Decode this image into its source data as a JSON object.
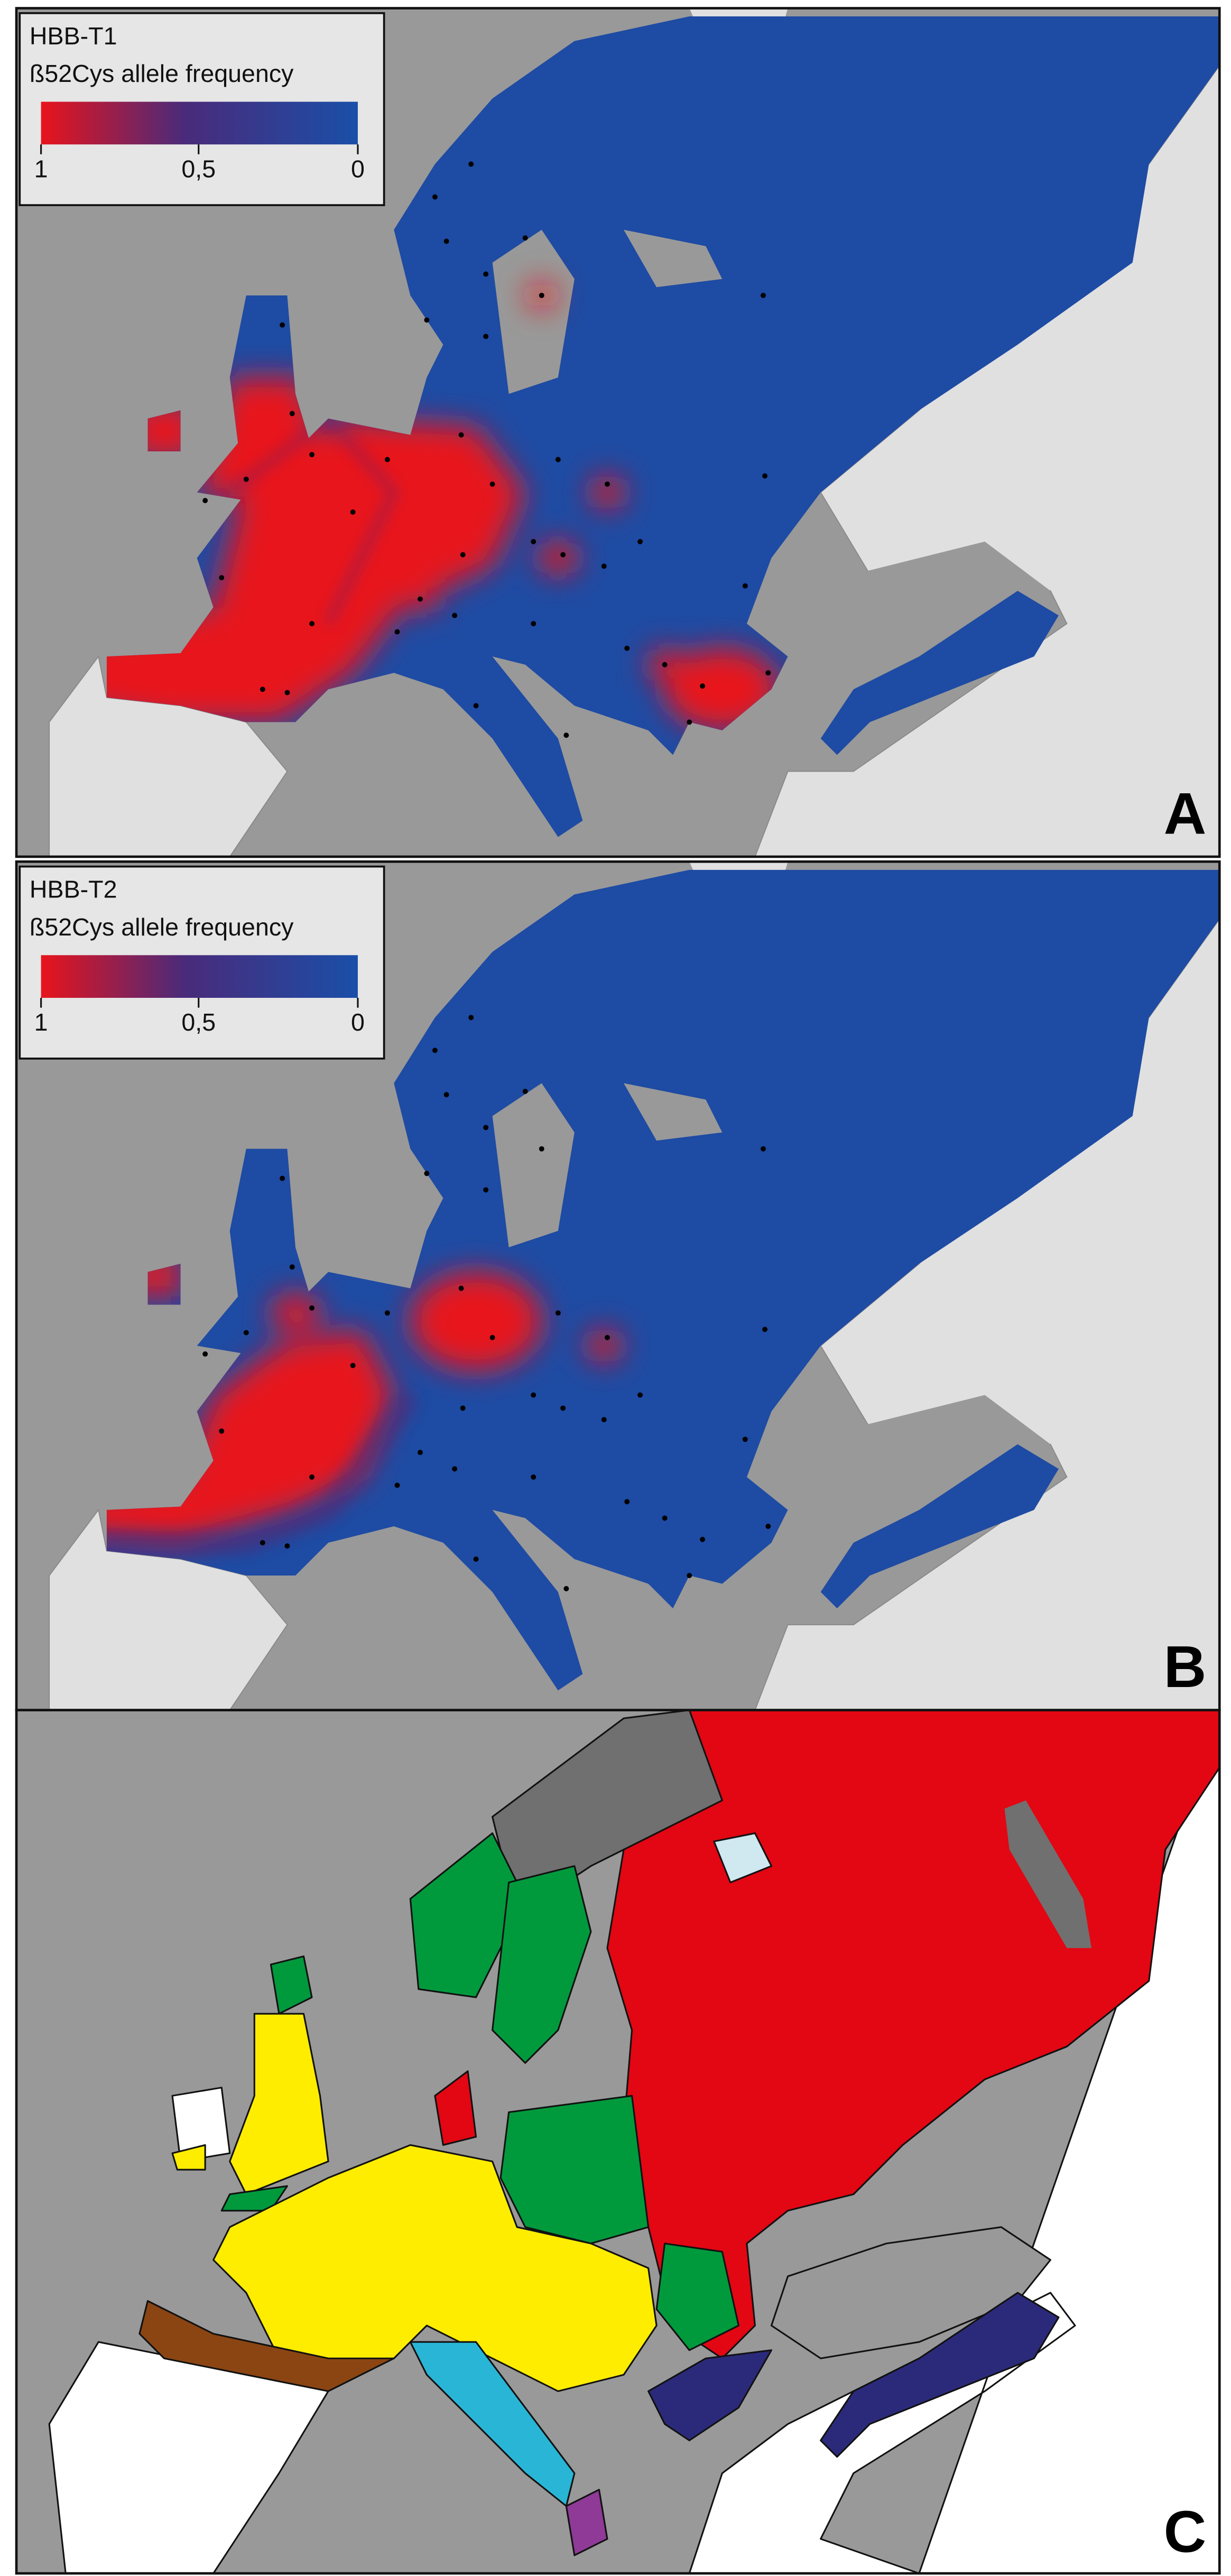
{
  "panels": [
    {
      "title": "HBB-T1",
      "subtitle": "ß52Cys allele frequency",
      "legend_labels": [
        "1",
        "0,5",
        "0"
      ],
      "label": "A"
    },
    {
      "title": "HBB-T2",
      "subtitle": "ß52Cys allele frequency",
      "legend_labels": [
        "1",
        "0,5",
        "0"
      ],
      "label": "B"
    },
    {
      "label": "C"
    }
  ]
}
